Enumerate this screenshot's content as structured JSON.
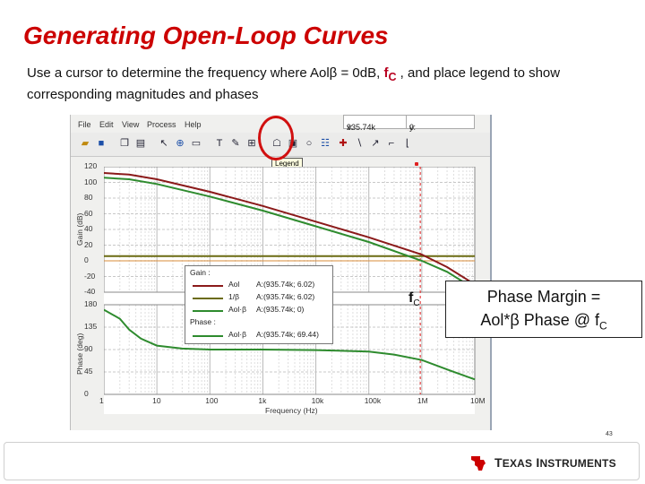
{
  "slide": {
    "title": "Generating Open-Loop Curves",
    "subtitle_text1": "Use a cursor to determine the frequency where Aolβ = 0dB, ",
    "subtitle_fc": "f",
    "subtitle_fc_sub": "C",
    "subtitle_text2": " , and place legend to show corresponding magnitudes and phases",
    "page_number": "43",
    "company": "Texas Instruments"
  },
  "app": {
    "menu": [
      "File",
      "Edit",
      "View",
      "Process",
      "Help"
    ],
    "cursor_x_label": "x:",
    "cursor_x_value": "935.74k",
    "cursor_y_label": "y:",
    "cursor_y_value": "0",
    "tooltip": "Legend",
    "toolbar_icons": [
      "open-icon",
      "save-icon",
      "copy-icon",
      "paste-icon",
      "pointer-icon",
      "zoom-icon",
      "print-icon",
      "text-icon",
      "pen-icon",
      "legend-icon",
      "magnifier-icon",
      "circle-icon",
      "cursor-icon",
      "marker-icon",
      "line-icon",
      "slope-icon",
      "corner-icon",
      "step-icon"
    ]
  },
  "legend": {
    "gain_header": "Gain :",
    "phase_header": "Phase :",
    "rows": [
      {
        "name": "Aol",
        "value": "A:(935.74k; 6.02)",
        "color": "#8b1a1a"
      },
      {
        "name": "1/β",
        "value": "A:(935.74k; 6.02)",
        "color": "#6b6b12"
      },
      {
        "name": "Aol·β",
        "value": "A:(935.74k; 0)",
        "color": "#2e8b2e"
      },
      {
        "name": "Aol·β",
        "value": "A:(935.74k; 69.44)",
        "color": "#2e8b2e"
      }
    ]
  },
  "annotations": {
    "fc": "f",
    "fc_sub": "C",
    "phase_margin_line1": "Phase Margin =",
    "phase_margin_line2": "Aol*β Phase @ f",
    "phase_margin_sub": "C"
  },
  "chart_data": {
    "type": "line",
    "xlabel": "Frequency (Hz)",
    "x_scale": "log",
    "x_ticks": [
      "1",
      "10",
      "100",
      "1k",
      "10k",
      "100k",
      "1M",
      "10M"
    ],
    "x_tick_values": [
      1,
      10,
      100,
      1000,
      10000,
      100000,
      1000000,
      10000000
    ],
    "xlim": [
      1,
      10000000
    ],
    "gain": {
      "ylabel": "Gain (dB)",
      "ylim": [
        -40,
        120
      ],
      "y_ticks": [
        "120",
        "100",
        "80",
        "60",
        "40",
        "20",
        "0",
        "-20",
        "-40"
      ],
      "series": [
        {
          "name": "Aol",
          "color": "#8b1a1a",
          "x": [
            1,
            3,
            10,
            100,
            1000,
            10000,
            100000,
            1000000,
            3000000,
            10000000
          ],
          "y": [
            112,
            110,
            104,
            88,
            70,
            50,
            30,
            8,
            -8,
            -30
          ]
        },
        {
          "name": "1/β",
          "color": "#6b6b12",
          "x": [
            1,
            10,
            100,
            1000,
            10000,
            100000,
            1000000,
            3000000,
            10000000
          ],
          "y": [
            6,
            6,
            6,
            6,
            6,
            6,
            6,
            6,
            6
          ]
        },
        {
          "name": "Aol·β",
          "color": "#2e8b2e",
          "x": [
            1,
            3,
            10,
            100,
            1000,
            10000,
            100000,
            1000000,
            3000000,
            10000000
          ],
          "y": [
            106,
            104,
            98,
            82,
            64,
            44,
            24,
            0,
            -14,
            -36
          ]
        }
      ]
    },
    "phase": {
      "ylabel": "Phase (deg)",
      "ylim": [
        0,
        180
      ],
      "y_ticks": [
        "180",
        "135",
        "90",
        "45",
        "0"
      ],
      "series": [
        {
          "name": "Aol·β",
          "color": "#2e8b2e",
          "x": [
            1,
            2,
            3,
            5,
            10,
            30,
            100,
            1000,
            10000,
            100000,
            300000,
            1000000,
            3000000,
            10000000
          ],
          "y": [
            170,
            152,
            130,
            112,
            98,
            92,
            90,
            90,
            89,
            86,
            80,
            69,
            50,
            30
          ]
        }
      ]
    },
    "cursor_x": 935740
  }
}
